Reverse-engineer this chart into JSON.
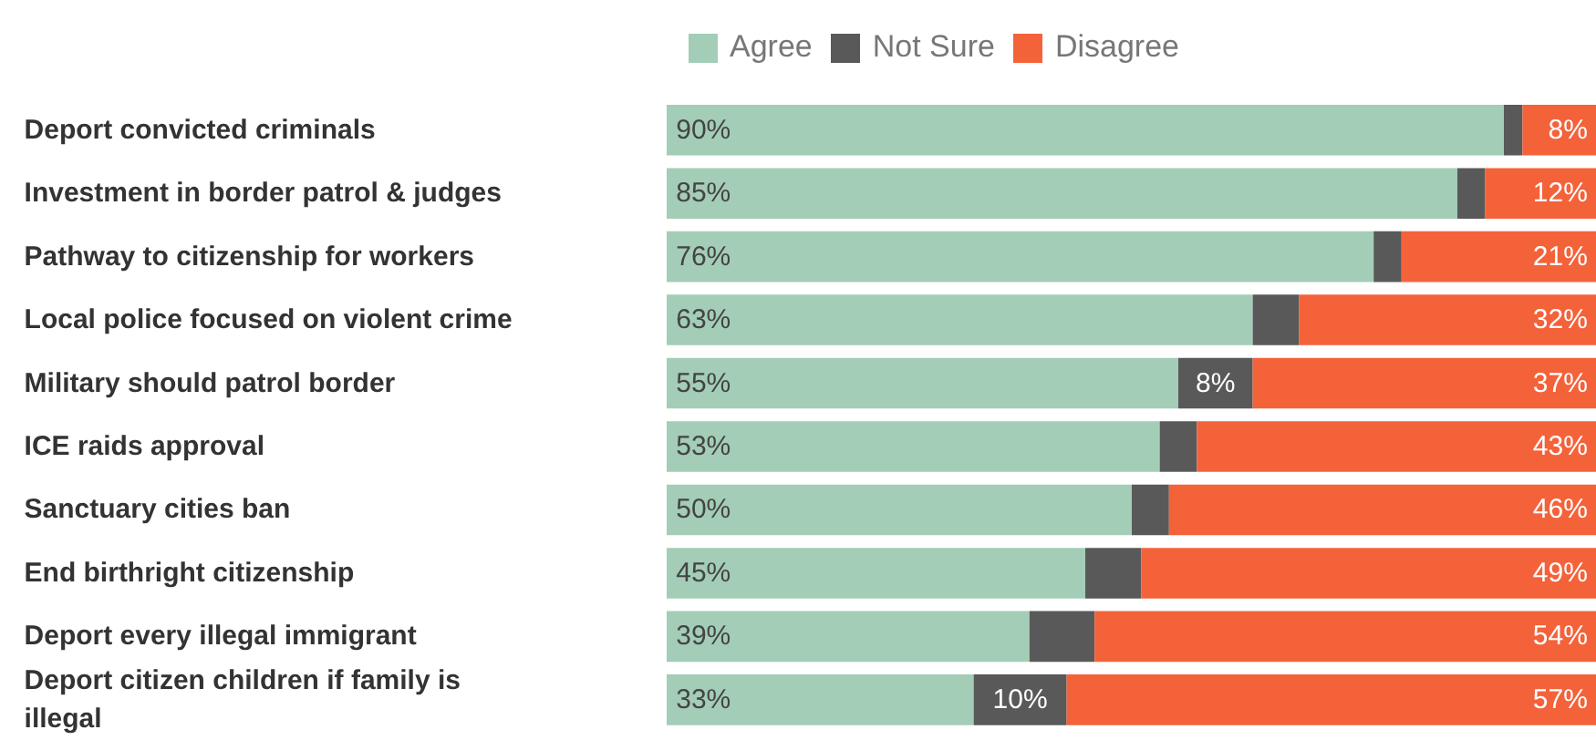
{
  "chart_data": {
    "type": "bar",
    "orientation": "horizontal",
    "stacked": true,
    "legend": "top",
    "categories": [
      "Deport convicted criminals",
      "Investment in border patrol & judges",
      "Pathway to citizenship for workers",
      "Local police focused on violent crime",
      "Military should patrol border",
      "ICE raids approval",
      "Sanctuary cities ban",
      "End birthright citizenship",
      "Deport every illegal immigrant",
      "Deport citizen children if family is illegal"
    ],
    "series": [
      {
        "name": "Agree",
        "color": "#a3cdb7",
        "values": [
          90,
          85,
          76,
          63,
          55,
          53,
          50,
          45,
          39,
          33
        ],
        "value_labels": [
          "90%",
          "85%",
          "76%",
          "63%",
          "55%",
          "53%",
          "50%",
          "45%",
          "39%",
          "33%"
        ]
      },
      {
        "name": "Not Sure",
        "color": "#595959",
        "values": [
          2,
          3,
          3,
          5,
          8,
          4,
          4,
          6,
          7,
          10
        ],
        "value_labels": [
          null,
          null,
          null,
          null,
          "8%",
          null,
          null,
          null,
          null,
          "10%"
        ]
      },
      {
        "name": "Disagree",
        "color": "#f4623a",
        "values": [
          8,
          12,
          21,
          32,
          37,
          43,
          46,
          49,
          54,
          57
        ],
        "value_labels": [
          "8%",
          "12%",
          "21%",
          "32%",
          "37%",
          "43%",
          "46%",
          "49%",
          "54%",
          "57%"
        ]
      }
    ]
  }
}
